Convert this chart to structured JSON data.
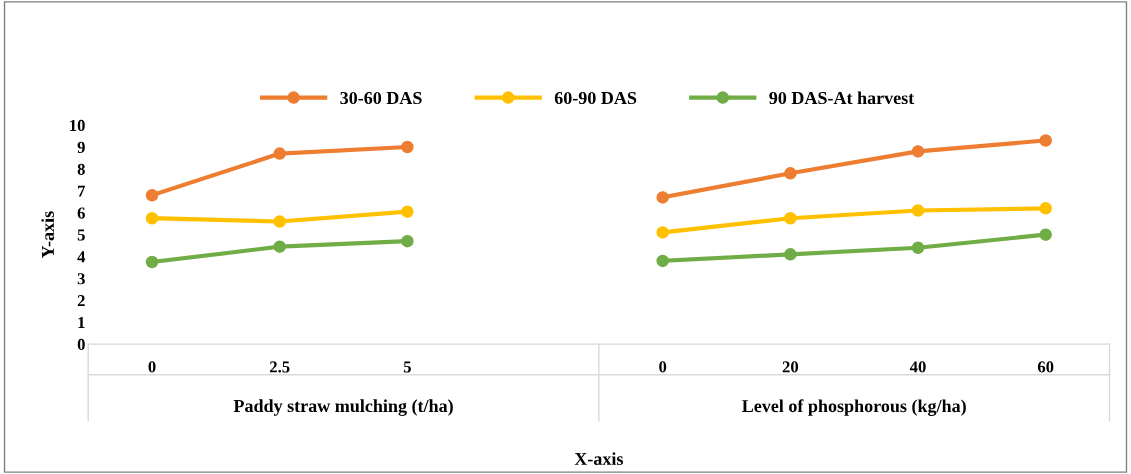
{
  "chart_data": {
    "type": "line",
    "xlabel": "X-axis",
    "ylabel": "Y-axis",
    "categories": [
      "0",
      "2.5",
      "5",
      null,
      "0",
      "20",
      "40",
      "60"
    ],
    "series": [
      {
        "name": "30-60 DAS",
        "color": "#ed7d31",
        "values": [
          6.8,
          8.7,
          9.0,
          null,
          6.7,
          7.8,
          8.8,
          9.3
        ]
      },
      {
        "name": "60-90 DAS",
        "color": "#ffc000",
        "values": [
          5.75,
          5.6,
          6.05,
          null,
          5.1,
          5.75,
          6.1,
          6.2
        ]
      },
      {
        "name": "90 DAS-At harvest",
        "color": "#70ad47",
        "values": [
          3.75,
          4.45,
          4.7,
          null,
          3.8,
          4.1,
          4.4,
          5.0
        ]
      }
    ],
    "annotations": [
      "Paddy straw mulching (t/ha)",
      "Level of phosphorous (kg/ha)"
    ],
    "ylim": [
      0,
      10
    ],
    "yticks": [
      0,
      1,
      2,
      3,
      4,
      5,
      6,
      7,
      8,
      9,
      10
    ],
    "grid": false,
    "legend": "top",
    "marker": "circle",
    "line_style": "solid"
  }
}
